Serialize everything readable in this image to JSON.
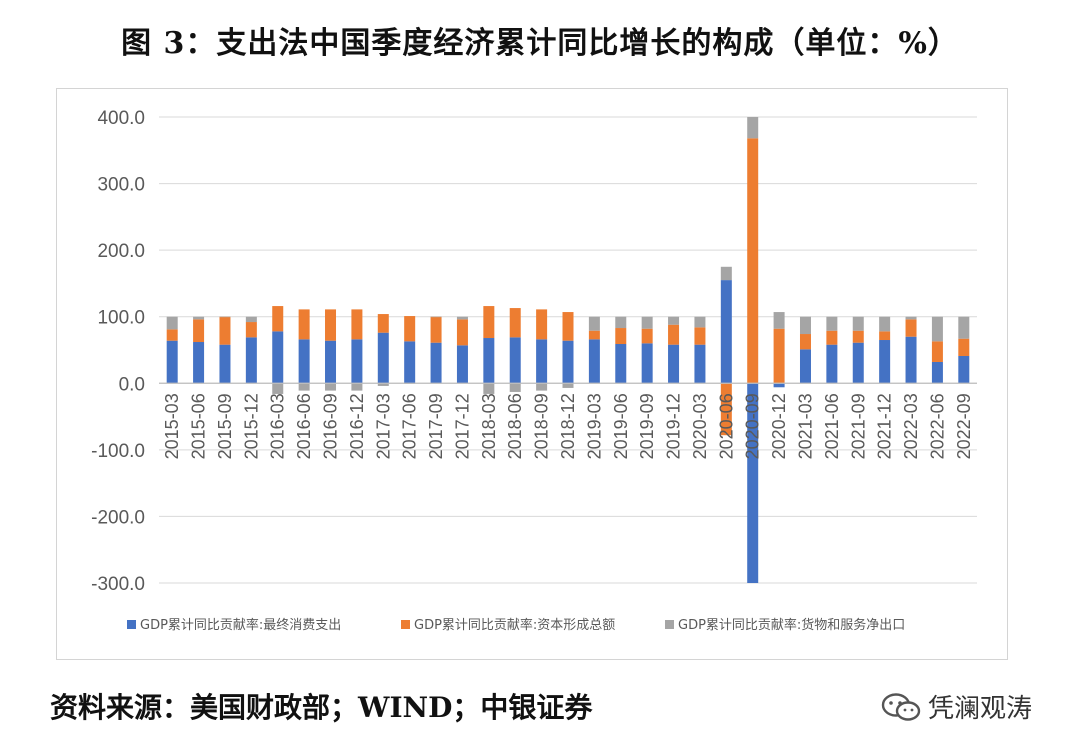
{
  "figure": {
    "title": "图 3：支出法中国季度经济累计同比增长的构成（单位：%）",
    "source": "资料来源：美国财政部；WIND；中银证券",
    "watermark": "凭澜观涛"
  },
  "colors": {
    "consumption": "#4472c4",
    "capital": "#ed7d31",
    "net_exports": "#a5a5a5",
    "grid": "#d9d9d9",
    "axis_text": "#595959"
  },
  "chart_data": {
    "type": "bar",
    "stacked": true,
    "ylim": [
      -300,
      400
    ],
    "yticks": [
      400,
      300,
      200,
      100,
      0,
      -100,
      -200,
      -300
    ],
    "ytick_labels": [
      "400.0",
      "300.0",
      "200.0",
      "100.0",
      "0.0",
      "-100.0",
      "-200.0",
      "-300.0"
    ],
    "grid": true,
    "legend_position": "bottom",
    "categories": [
      "2015-03",
      "2015-06",
      "2015-09",
      "2015-12",
      "2016-03",
      "2016-06",
      "2016-09",
      "2016-12",
      "2017-03",
      "2017-06",
      "2017-09",
      "2017-12",
      "2018-03",
      "2018-06",
      "2018-09",
      "2018-12",
      "2019-03",
      "2019-06",
      "2019-09",
      "2019-12",
      "2020-03",
      "2020-06",
      "2020-09",
      "2020-12",
      "2021-03",
      "2021-06",
      "2021-09",
      "2021-12",
      "2022-03",
      "2022-06",
      "2022-09"
    ],
    "series": [
      {
        "name": "GDP累计同比贡献率:最终消费支出",
        "color_key": "consumption",
        "values": [
          64,
          62,
          58,
          69,
          78,
          66,
          64,
          66,
          76,
          63,
          61,
          57,
          68,
          69,
          66,
          64,
          66,
          59,
          60,
          58,
          58,
          155,
          -300,
          -6,
          51,
          58,
          61,
          65,
          70,
          32,
          41
        ]
      },
      {
        "name": "GDP累计同比贡献率:资本形成总额",
        "color_key": "capital",
        "values": [
          17,
          34,
          42,
          23,
          38,
          45,
          47,
          45,
          28,
          38,
          39,
          39,
          48,
          44,
          45,
          43,
          13,
          24,
          22,
          30,
          26,
          -78,
          368,
          82,
          23,
          21,
          18,
          13,
          26,
          31,
          26
        ]
      },
      {
        "name": "GDP累计同比贡献率:货物和服务净出口",
        "color_key": "net_exports",
        "values": [
          19,
          4,
          0,
          8,
          -16,
          -11,
          -11,
          -11,
          -4,
          -1,
          0,
          4,
          -16,
          -13,
          -11,
          -7,
          21,
          17,
          18,
          12,
          16,
          20,
          32,
          25,
          26,
          21,
          21,
          22,
          4,
          37,
          33
        ]
      }
    ]
  }
}
